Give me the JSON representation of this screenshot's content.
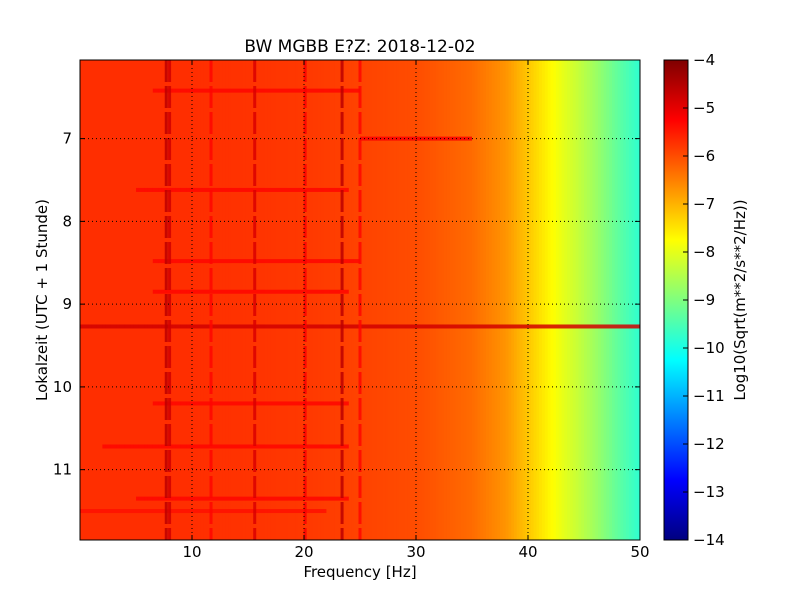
{
  "chart_data": {
    "type": "heatmap",
    "title": "BW MGBB E?Z: 2018-12-02",
    "xlabel": "Frequency [Hz]",
    "ylabel": "Lokalzeit (UTC + 1 Stunde)",
    "xlim": [
      0,
      50
    ],
    "ylim": [
      11.85,
      6.05
    ],
    "xticks": [
      10,
      20,
      30,
      40,
      50
    ],
    "xtick_labels": [
      "10",
      "20",
      "30",
      "40",
      "50"
    ],
    "yticks": [
      7,
      8,
      9,
      10,
      11
    ],
    "ytick_labels": [
      "7",
      "8",
      "9",
      "10",
      "11"
    ],
    "grid": true,
    "colorbar": {
      "label": "Log10(Sqrt(m**2/s**2/Hz))",
      "colormap": "jet",
      "range": [
        -14,
        -4
      ],
      "ticks": [
        -4,
        -5,
        -6,
        -7,
        -8,
        -9,
        -10,
        -11,
        -12,
        -13,
        -14
      ],
      "tick_labels": [
        "−4",
        "−5",
        "−6",
        "−7",
        "−8",
        "−9",
        "−10",
        "−11",
        "−12",
        "−13",
        "−14"
      ]
    },
    "background_profile": {
      "frequency_hz": [
        0,
        10,
        20,
        30,
        35,
        38,
        40,
        42,
        44,
        46,
        48,
        50
      ],
      "level": [
        -5.7,
        -5.7,
        -5.8,
        -6.0,
        -6.3,
        -6.7,
        -7.2,
        -7.7,
        -8.2,
        -8.7,
        -9.3,
        -9.8
      ]
    },
    "vertical_lines": [
      {
        "frequency_hz": 7.7,
        "level": -4.6
      },
      {
        "frequency_hz": 8.0,
        "level": -4.8
      },
      {
        "frequency_hz": 11.7,
        "level": -5.3
      },
      {
        "frequency_hz": 15.6,
        "level": -4.9
      },
      {
        "frequency_hz": 20.1,
        "level": -5.2
      },
      {
        "frequency_hz": 23.4,
        "level": -4.6
      },
      {
        "frequency_hz": 25.0,
        "level": -5.3
      }
    ],
    "horizontal_lines": [
      {
        "time_h": 6.42,
        "f_start": 6.5,
        "f_end": 25,
        "level": -5.3
      },
      {
        "time_h": 7.0,
        "f_start": 25,
        "f_end": 35,
        "level": -5.2
      },
      {
        "time_h": 7.62,
        "f_start": 5,
        "f_end": 24,
        "level": -5.3
      },
      {
        "time_h": 8.48,
        "f_start": 6.5,
        "f_end": 25,
        "level": -5.3
      },
      {
        "time_h": 8.85,
        "f_start": 6.5,
        "f_end": 24,
        "level": -5.3
      },
      {
        "time_h": 9.27,
        "f_start": 0,
        "f_end": 50,
        "level": -4.8
      },
      {
        "time_h": 10.2,
        "f_start": 6.5,
        "f_end": 24,
        "level": -5.3
      },
      {
        "time_h": 10.72,
        "f_start": 2,
        "f_end": 24,
        "level": -5.3
      },
      {
        "time_h": 11.35,
        "f_start": 5,
        "f_end": 24,
        "level": -5.3
      },
      {
        "time_h": 11.5,
        "f_start": 0,
        "f_end": 22,
        "level": -5.4
      }
    ]
  }
}
